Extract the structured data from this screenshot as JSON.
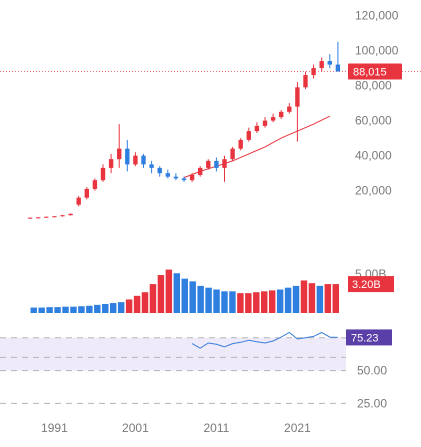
{
  "colors": {
    "up": "#e8343f",
    "down": "#2f7fe0",
    "ma_line": "#e8343f",
    "price_tag": "#e8343f",
    "volume_tag": "#e8343f",
    "osc_line": "#3a7fd8",
    "osc_tag": "#5a3fa8",
    "osc_band": "#efeaf9",
    "guide": "#b5b5b5",
    "last_price_line": "#e8343f",
    "axis_text": "#7a7a7a"
  },
  "chart_data": [
    {
      "type": "candlestick",
      "panel": "price",
      "yticks": [
        "120,000",
        "100,000",
        "80,000",
        "60,000",
        "40,000",
        "20,000"
      ],
      "ytick_values": [
        120000,
        100000,
        80000,
        60000,
        40000,
        20000
      ],
      "ylim": [
        -11000,
        126000
      ],
      "last_price_label": "88,015",
      "last_price": 88015,
      "candles": [
        {
          "x": 1988,
          "o": 4400,
          "h": 4800,
          "l": 4200,
          "c": 4600
        },
        {
          "x": 1989,
          "o": 4600,
          "h": 5000,
          "l": 4400,
          "c": 4800
        },
        {
          "x": 1990,
          "o": 4800,
          "h": 5300,
          "l": 4600,
          "c": 5100
        },
        {
          "x": 1991,
          "o": 5100,
          "h": 5600,
          "l": 4900,
          "c": 5400
        },
        {
          "x": 1992,
          "o": 5400,
          "h": 6200,
          "l": 5200,
          "c": 6000
        },
        {
          "x": 1993,
          "o": 6000,
          "h": 7000,
          "l": 5800,
          "c": 6800
        },
        {
          "x": 1994,
          "o": 12000,
          "h": 17000,
          "l": 11000,
          "c": 16000
        },
        {
          "x": 1995,
          "o": 16000,
          "h": 22000,
          "l": 15000,
          "c": 21000
        },
        {
          "x": 1996,
          "o": 21000,
          "h": 27000,
          "l": 20000,
          "c": 26000
        },
        {
          "x": 1997,
          "o": 26000,
          "h": 35000,
          "l": 25000,
          "c": 33000
        },
        {
          "x": 1998,
          "o": 33000,
          "h": 41000,
          "l": 30000,
          "c": 38000
        },
        {
          "x": 1999,
          "o": 38000,
          "h": 58000,
          "l": 33000,
          "c": 44000
        },
        {
          "x": 2000,
          "o": 44000,
          "h": 49000,
          "l": 31000,
          "c": 35000
        },
        {
          "x": 2001,
          "o": 35000,
          "h": 42000,
          "l": 34000,
          "c": 40000
        },
        {
          "x": 2002,
          "o": 40000,
          "h": 41000,
          "l": 33000,
          "c": 35000
        },
        {
          "x": 2003,
          "o": 35000,
          "h": 37000,
          "l": 30000,
          "c": 33000
        },
        {
          "x": 2004,
          "o": 33000,
          "h": 34000,
          "l": 28000,
          "c": 30000
        },
        {
          "x": 2005,
          "o": 30000,
          "h": 32000,
          "l": 27000,
          "c": 28000
        },
        {
          "x": 2006,
          "o": 28000,
          "h": 30000,
          "l": 26000,
          "c": 27000
        },
        {
          "x": 2007,
          "o": 27000,
          "h": 28000,
          "l": 25000,
          "c": 26000
        },
        {
          "x": 2008,
          "o": 26000,
          "h": 30000,
          "l": 25000,
          "c": 29000
        },
        {
          "x": 2009,
          "o": 29000,
          "h": 34000,
          "l": 28000,
          "c": 33000
        },
        {
          "x": 2010,
          "o": 33000,
          "h": 38000,
          "l": 32000,
          "c": 37000
        },
        {
          "x": 2011,
          "o": 37000,
          "h": 39000,
          "l": 31000,
          "c": 33000
        },
        {
          "x": 2012,
          "o": 33000,
          "h": 40000,
          "l": 25000,
          "c": 38000
        },
        {
          "x": 2013,
          "o": 38000,
          "h": 45000,
          "l": 37000,
          "c": 44000
        },
        {
          "x": 2014,
          "o": 44000,
          "h": 50000,
          "l": 43000,
          "c": 49000
        },
        {
          "x": 2015,
          "o": 49000,
          "h": 56000,
          "l": 48000,
          "c": 54000
        },
        {
          "x": 2016,
          "o": 54000,
          "h": 59000,
          "l": 53000,
          "c": 57000
        },
        {
          "x": 2017,
          "o": 57000,
          "h": 62000,
          "l": 56000,
          "c": 60000
        },
        {
          "x": 2018,
          "o": 60000,
          "h": 64000,
          "l": 59000,
          "c": 62000
        },
        {
          "x": 2019,
          "o": 62000,
          "h": 66000,
          "l": 61000,
          "c": 65000
        },
        {
          "x": 2020,
          "o": 65000,
          "h": 70000,
          "l": 64000,
          "c": 68000
        },
        {
          "x": 2021,
          "o": 68000,
          "h": 82000,
          "l": 48000,
          "c": 79000
        },
        {
          "x": 2022,
          "o": 79000,
          "h": 88000,
          "l": 78000,
          "c": 86000
        },
        {
          "x": 2023,
          "o": 86000,
          "h": 92000,
          "l": 84000,
          "c": 90000
        },
        {
          "x": 2024,
          "o": 90000,
          "h": 96000,
          "l": 88000,
          "c": 94000
        },
        {
          "x": 2025,
          "o": 94000,
          "h": 98000,
          "l": 90000,
          "c": 92000
        },
        {
          "x": 2026,
          "o": 92000,
          "h": 105000,
          "l": 89000,
          "c": 88015
        }
      ],
      "ma_series": [
        {
          "x": 2007,
          "y": 27500
        },
        {
          "x": 2009,
          "y": 31000
        },
        {
          "x": 2011,
          "y": 34000
        },
        {
          "x": 2013,
          "y": 37000
        },
        {
          "x": 2015,
          "y": 41000
        },
        {
          "x": 2017,
          "y": 45000
        },
        {
          "x": 2019,
          "y": 50000
        },
        {
          "x": 2021,
          "y": 54000
        },
        {
          "x": 2023,
          "y": 58000
        },
        {
          "x": 2025,
          "y": 62500
        }
      ]
    },
    {
      "type": "bar",
      "panel": "volume",
      "yticks": [
        "5.00B"
      ],
      "ytick_values": [
        5.0
      ],
      "ylim": [
        0,
        5.2
      ],
      "last_volume_label": "3.20B",
      "last_volume": 3.2,
      "values": [
        0.6,
        0.6,
        0.65,
        0.65,
        0.7,
        0.7,
        0.75,
        0.8,
        0.9,
        1.0,
        1.1,
        1.2,
        1.5,
        1.9,
        2.3,
        3.2,
        4.2,
        4.8,
        4.4,
        3.8,
        3.5,
        3.0,
        2.8,
        2.6,
        2.4,
        2.4,
        2.2,
        2.2,
        2.3,
        2.4,
        2.5,
        2.6,
        2.8,
        3.0,
        3.6,
        3.3,
        3.0,
        3.2,
        3.2
      ],
      "dir": [
        "down",
        "down",
        "down",
        "down",
        "down",
        "down",
        "down",
        "down",
        "down",
        "down",
        "down",
        "down",
        "up",
        "up",
        "up",
        "up",
        "up",
        "up",
        "down",
        "down",
        "down",
        "down",
        "down",
        "down",
        "down",
        "down",
        "up",
        "up",
        "up",
        "up",
        "up",
        "down",
        "down",
        "down",
        "up",
        "up",
        "down",
        "up",
        "up"
      ]
    },
    {
      "type": "line",
      "panel": "oscillator",
      "yticks": [
        "50.00",
        "25.00"
      ],
      "ytick_values": [
        50,
        25
      ],
      "ylim": [
        20,
        90
      ],
      "band": [
        50,
        75
      ],
      "last_label": "75.23",
      "last_value": 75.23,
      "guide_levels": [
        75,
        60,
        50,
        25
      ],
      "values": [
        {
          "x": 2008,
          "y": 70.5
        },
        {
          "x": 2009,
          "y": 67.0
        },
        {
          "x": 2010,
          "y": 71.0
        },
        {
          "x": 2011,
          "y": 70.0
        },
        {
          "x": 2012,
          "y": 68.0
        },
        {
          "x": 2013,
          "y": 70.5
        },
        {
          "x": 2014,
          "y": 71.5
        },
        {
          "x": 2015,
          "y": 73.0
        },
        {
          "x": 2016,
          "y": 72.0
        },
        {
          "x": 2017,
          "y": 71.0
        },
        {
          "x": 2018,
          "y": 72.5
        },
        {
          "x": 2019,
          "y": 75.5
        },
        {
          "x": 2020,
          "y": 79.0
        },
        {
          "x": 2021,
          "y": 74.0
        },
        {
          "x": 2022,
          "y": 75.0
        },
        {
          "x": 2023,
          "y": 76.0
        },
        {
          "x": 2024,
          "y": 79.0
        },
        {
          "x": 2025,
          "y": 75.5
        },
        {
          "x": 2026,
          "y": 75.23
        }
      ]
    },
    {
      "type": "axis",
      "panel": "time",
      "xticks": [
        "1991",
        "2001",
        "2011",
        "2021"
      ],
      "xtick_values": [
        1991,
        2001,
        2011,
        2021
      ],
      "xlim": [
        1987,
        2027
      ]
    }
  ]
}
